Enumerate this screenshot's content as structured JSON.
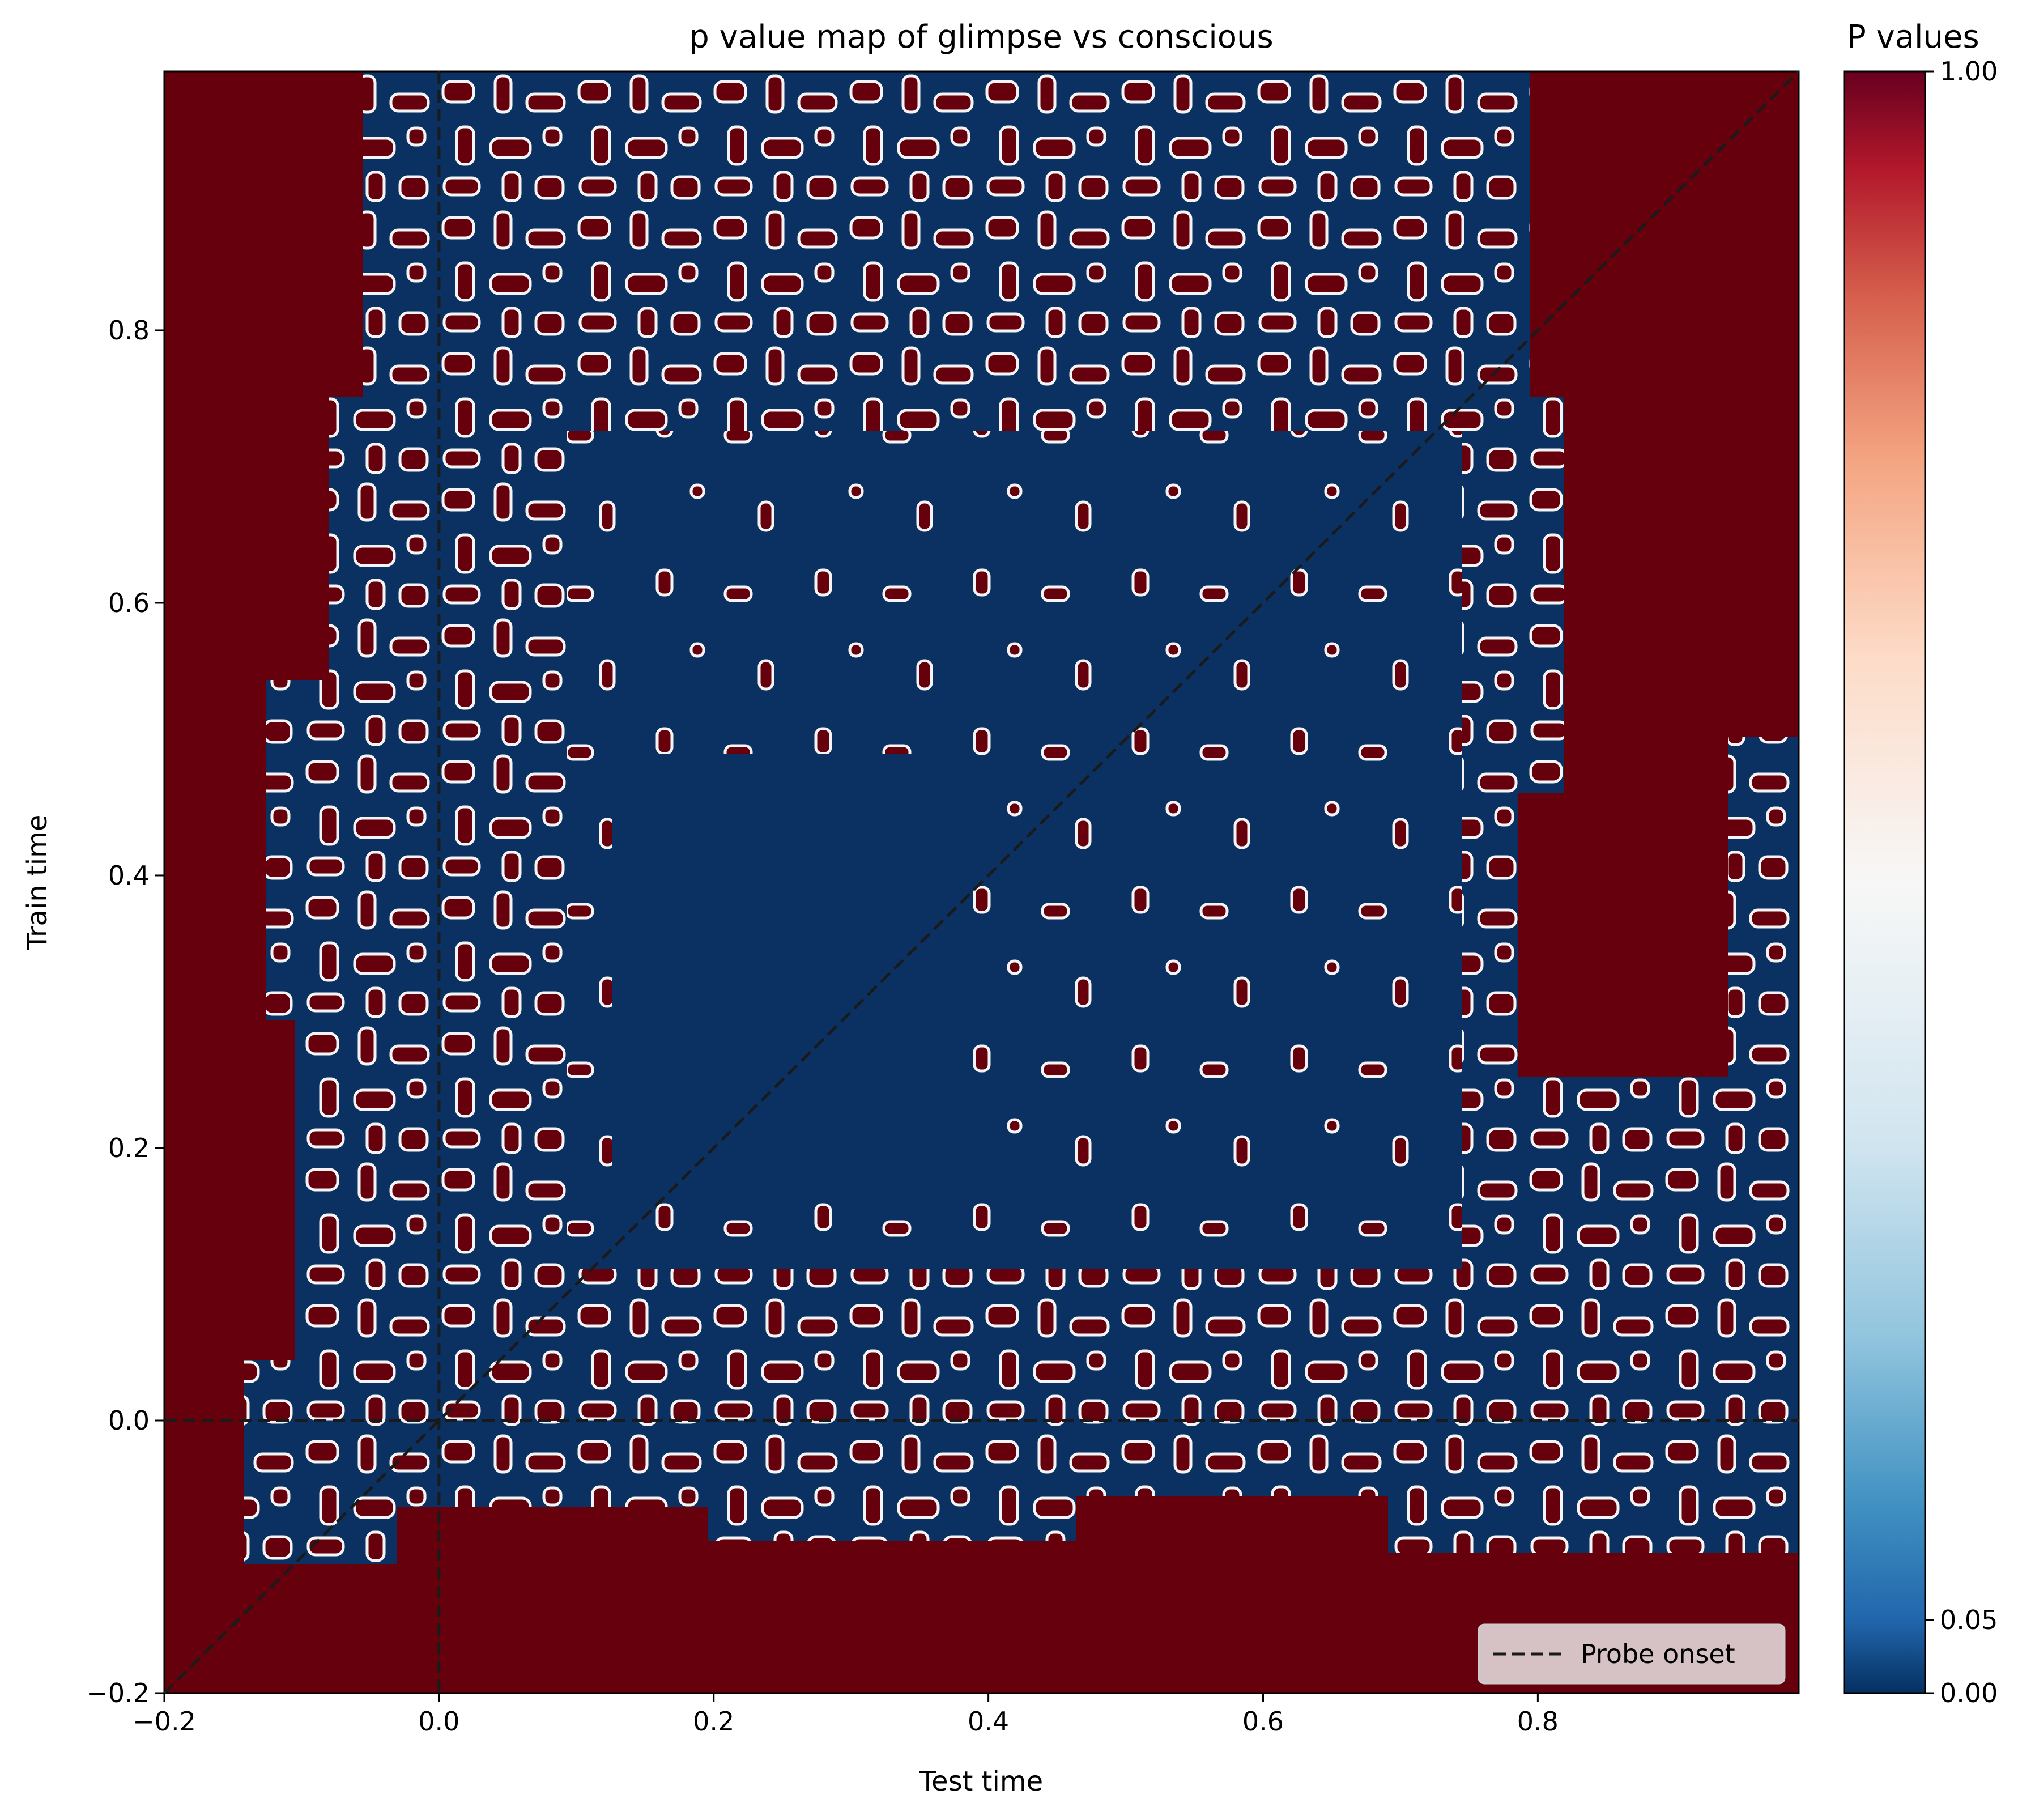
{
  "chart_data": {
    "type": "heatmap",
    "title": "p value map of glimpse vs conscious",
    "xlabel": "Test time",
    "ylabel": "Train time",
    "xlim": [
      -0.2,
      0.99
    ],
    "ylim": [
      -0.2,
      0.99
    ],
    "x_ticks": [
      -0.2,
      0.0,
      0.2,
      0.4,
      0.6,
      0.8
    ],
    "x_tick_labels": [
      "−0.2",
      "0.0",
      "0.2",
      "0.4",
      "0.6",
      "0.8"
    ],
    "y_ticks": [
      -0.2,
      0.0,
      0.2,
      0.4,
      0.6,
      0.8
    ],
    "y_tick_labels": [
      "−0.2",
      "0.0",
      "0.2",
      "0.4",
      "0.6",
      "0.8"
    ],
    "colorbar": {
      "title": "P values",
      "ticks": [
        0.0,
        0.05,
        1.0
      ],
      "tick_labels": [
        "0.00",
        "0.05",
        "1.00"
      ],
      "colormap": "RdBu_r",
      "color_low": "#0a3161",
      "color_mid": "#f7f7f7",
      "color_high": "#67000d"
    },
    "legend": {
      "placement": "lower-right",
      "entries": [
        {
          "label": "Probe onset",
          "style": "dashed",
          "color": "#000000"
        }
      ]
    },
    "reference_lines": [
      {
        "kind": "vertical",
        "x": 0.0,
        "style": "dashed"
      },
      {
        "kind": "horizontal",
        "y": 0.0,
        "style": "dashed"
      },
      {
        "kind": "diagonal",
        "from": [
          -0.2,
          -0.2
        ],
        "to": [
          0.99,
          0.99
        ],
        "style": "dashed"
      }
    ],
    "description_values": {
      "low_p_region": {
        "x_range": [
          0.1,
          0.75
        ],
        "y_range": [
          0.12,
          0.72
        ],
        "p": 0.0
      },
      "high_p_left_band": {
        "x_range": [
          -0.2,
          -0.05
        ],
        "p": 1.0
      },
      "high_p_bottom_band": {
        "y_range": [
          -0.2,
          -0.12
        ],
        "p": 1.0
      }
    }
  }
}
